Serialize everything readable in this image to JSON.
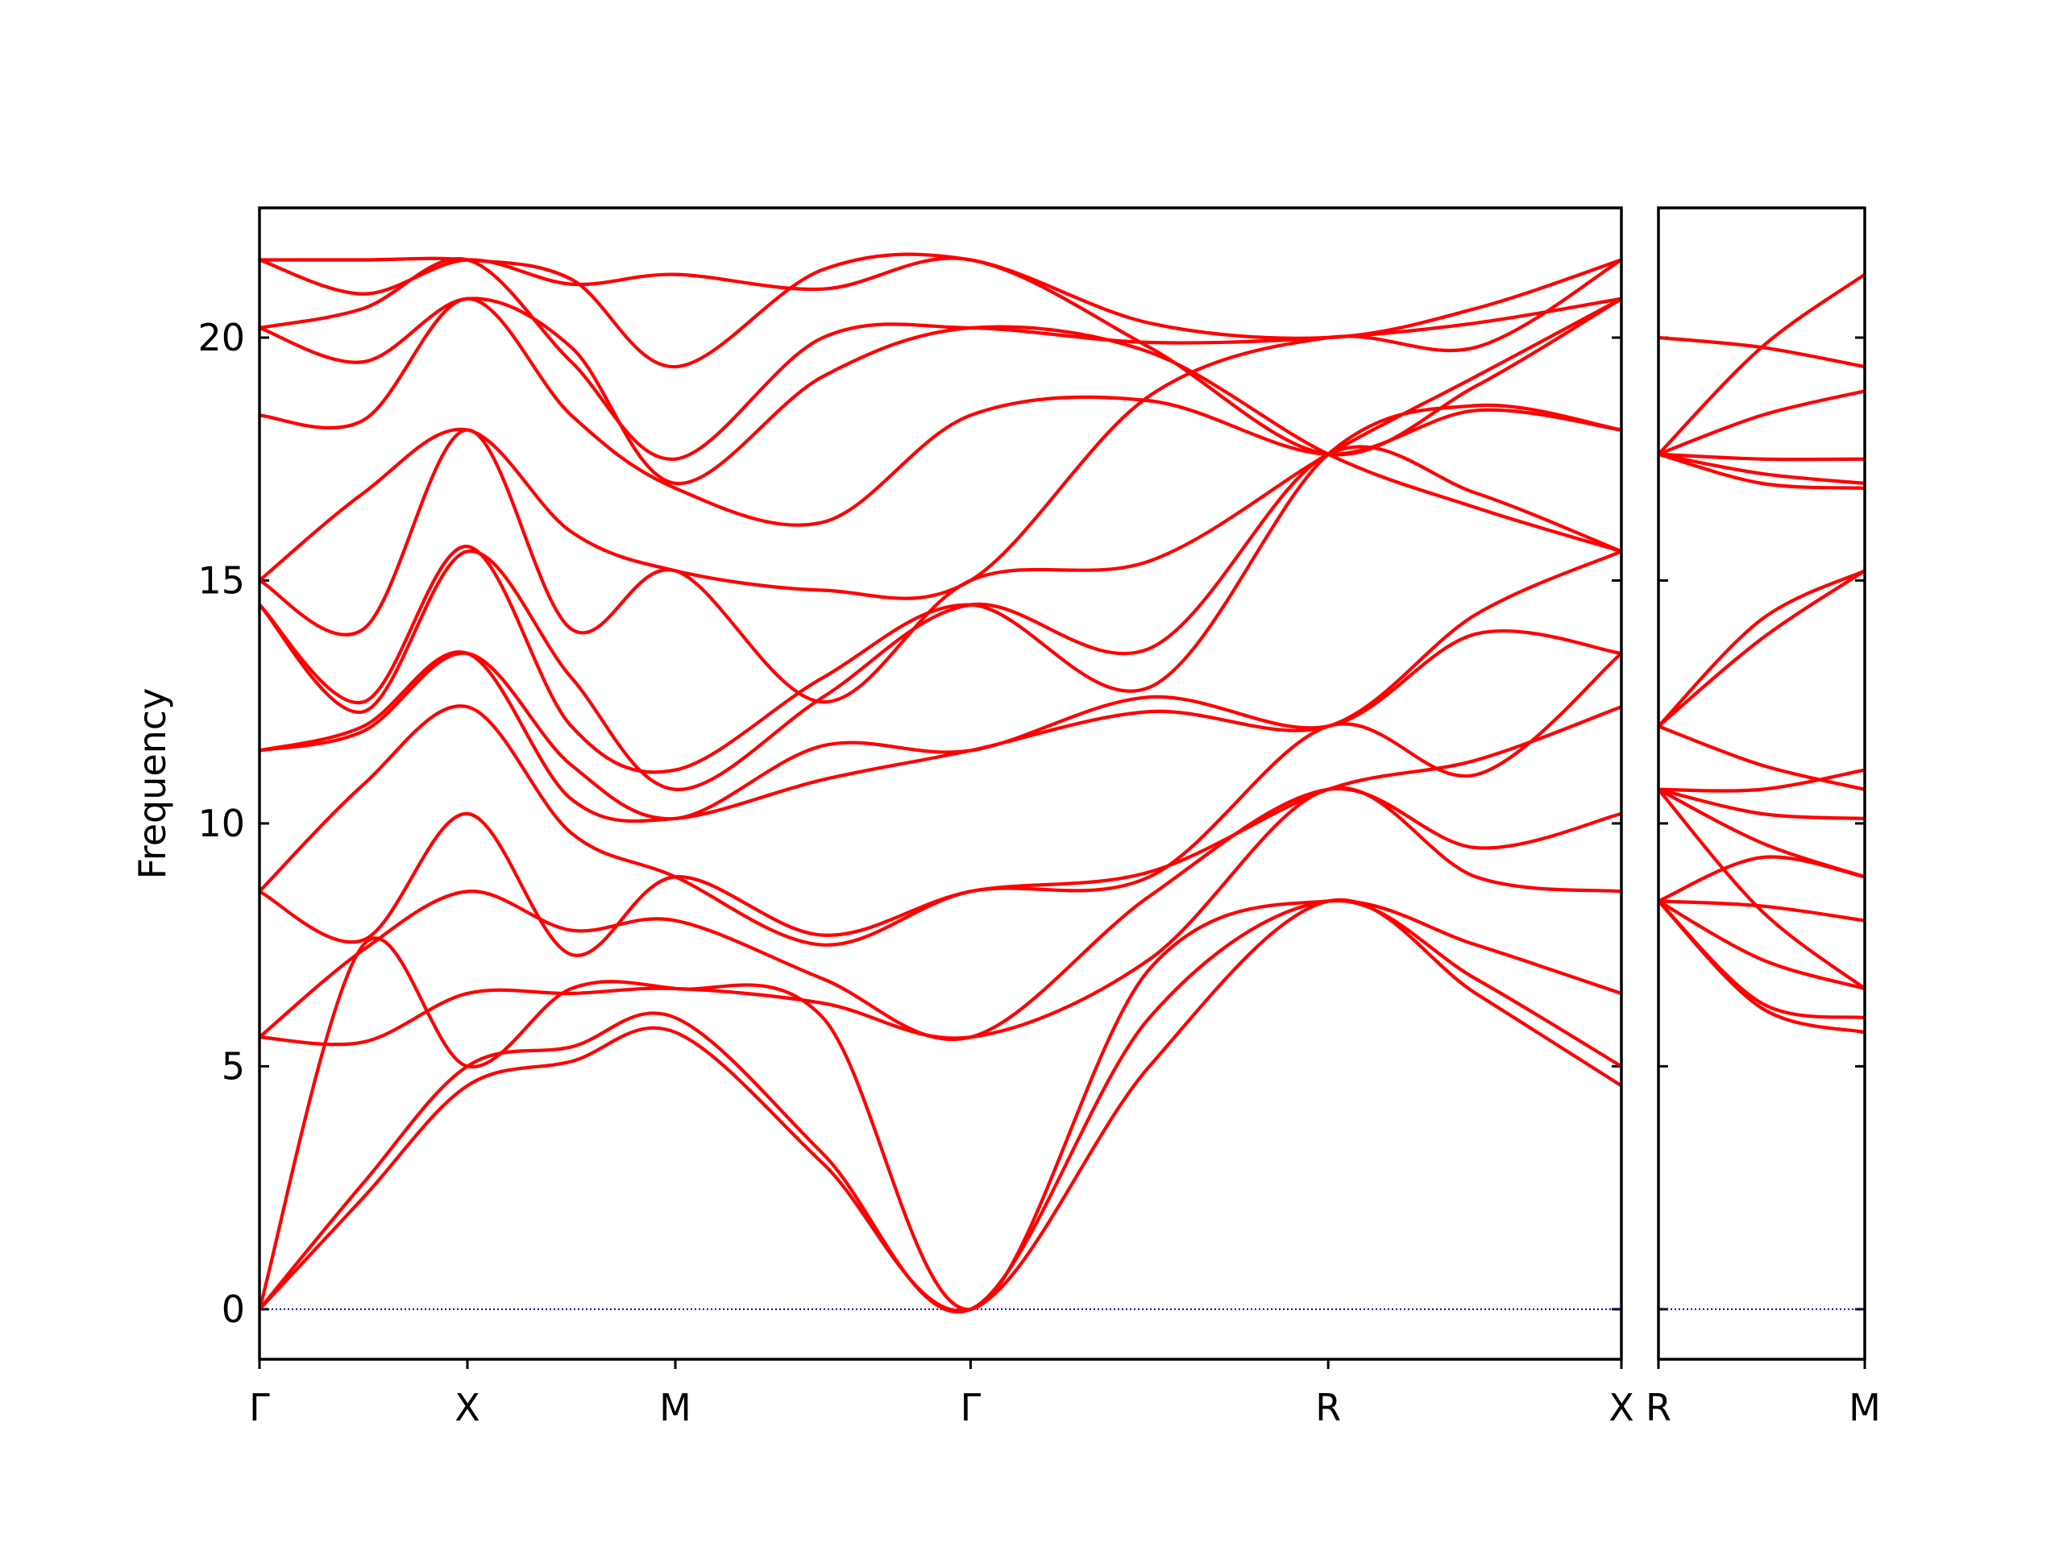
{
  "chart_data": [
    {
      "type": "line",
      "y_label": "Frequency",
      "x": [
        0,
        0.5,
        1,
        1.5,
        2,
        2.71,
        3.42,
        4.28,
        5.14,
        5.85,
        6.55
      ],
      "xlim": [
        0,
        6.55
      ],
      "xticks": [
        {
          "value": 0,
          "label": "Γ"
        },
        {
          "value": 1,
          "label": "X"
        },
        {
          "value": 2,
          "label": "M"
        },
        {
          "value": 3.42,
          "label": "Γ"
        },
        {
          "value": 5.14,
          "label": "R"
        },
        {
          "value": 6.55,
          "label": "X"
        }
      ],
      "ylim": [
        -1.03,
        22.67
      ],
      "yticks": [
        0,
        5,
        10,
        15,
        20
      ],
      "reference_line": {
        "value": 0,
        "color": "#0000cc"
      },
      "series": [
        {
          "color": "#ff0000",
          "values": [
            0,
            2.3,
            4.6,
            5.1,
            5.7,
            3.0,
            0,
            5.0,
            8.4,
            6.5,
            4.6
          ]
        },
        {
          "color": "#ff0000",
          "values": [
            0,
            2.6,
            5.0,
            5.4,
            6.0,
            3.2,
            0,
            6.0,
            8.4,
            6.8,
            5.0
          ]
        },
        {
          "color": "#ff0000",
          "values": [
            0,
            7.5,
            5.0,
            6.6,
            6.6,
            6.0,
            0,
            7.0,
            8.4,
            7.5,
            6.5
          ]
        },
        {
          "color": "#ff0000",
          "values": [
            5.6,
            5.5,
            6.5,
            6.5,
            6.6,
            6.3,
            5.6,
            7.2,
            10.7,
            8.9,
            8.6
          ]
        },
        {
          "color": "#ff0000",
          "values": [
            5.6,
            7.4,
            8.6,
            7.8,
            8.0,
            6.8,
            5.6,
            8.5,
            10.7,
            9.5,
            10.2
          ]
        },
        {
          "color": "#ff0000",
          "values": [
            8.6,
            7.6,
            10.2,
            7.3,
            8.9,
            7.7,
            8.6,
            9.0,
            10.7,
            11.3,
            12.4
          ]
        },
        {
          "color": "#ff0000",
          "values": [
            8.6,
            10.8,
            12.4,
            9.8,
            8.9,
            7.5,
            8.6,
            8.9,
            12.0,
            11.0,
            13.5
          ]
        },
        {
          "color": "#ff0000",
          "values": [
            11.5,
            11.9,
            13.5,
            11.2,
            10.1,
            11.6,
            11.5,
            12.6,
            12.0,
            13.9,
            13.5
          ]
        },
        {
          "color": "#ff0000",
          "values": [
            11.5,
            12.0,
            13.5,
            10.5,
            10.1,
            10.9,
            11.5,
            12.3,
            12.0,
            14.3,
            15.6
          ]
        },
        {
          "color": "#ff0000",
          "values": [
            14.5,
            12.3,
            15.6,
            13.0,
            10.7,
            12.6,
            14.5,
            13.6,
            17.6,
            16.8,
            15.6
          ]
        },
        {
          "color": "#ff0000",
          "values": [
            14.5,
            12.5,
            15.7,
            12.0,
            11.1,
            13.0,
            14.5,
            12.8,
            17.6,
            18.6,
            18.1
          ]
        },
        {
          "color": "#ff0000",
          "values": [
            15.0,
            14.0,
            18.1,
            14.0,
            15.2,
            12.5,
            15.0,
            15.4,
            17.6,
            19.2,
            20.8
          ]
        },
        {
          "color": "#ff0000",
          "values": [
            15.0,
            16.8,
            18.1,
            16.0,
            15.2,
            14.8,
            15.0,
            18.8,
            20.0,
            19.8,
            21.6
          ]
        },
        {
          "color": "#ff0000",
          "values": [
            18.4,
            18.3,
            20.8,
            18.4,
            16.9,
            16.2,
            18.4,
            18.7,
            17.6,
            18.5,
            18.1
          ]
        },
        {
          "color": "#ff0000",
          "values": [
            20.2,
            19.5,
            20.8,
            19.8,
            17.0,
            19.2,
            20.2,
            19.7,
            17.6,
            16.5,
            15.6
          ]
        },
        {
          "color": "#ff0000",
          "values": [
            20.2,
            20.6,
            21.6,
            19.5,
            17.5,
            20.0,
            20.2,
            19.9,
            20.0,
            20.3,
            20.8
          ]
        },
        {
          "color": "#ff0000",
          "values": [
            21.6,
            21.6,
            21.6,
            21.2,
            19.4,
            21.4,
            21.6,
            20.3,
            20.0,
            20.6,
            21.6
          ]
        },
        {
          "color": "#ff0000",
          "values": [
            21.6,
            20.9,
            21.6,
            21.1,
            21.3,
            21.0,
            21.6,
            19.8,
            17.6,
            19.0,
            20.8
          ]
        }
      ]
    },
    {
      "type": "line",
      "x": [
        0,
        0.5,
        1
      ],
      "xlim": [
        0,
        1
      ],
      "xticks": [
        {
          "value": 0,
          "label": "R"
        },
        {
          "value": 1,
          "label": "M"
        }
      ],
      "ylim": [
        -1.03,
        22.67
      ],
      "yticks": [
        0,
        5,
        10,
        15,
        20
      ],
      "reference_line": {
        "value": 0,
        "color": "#0000cc"
      },
      "series": [
        {
          "color": "#ff0000",
          "values": [
            20.0,
            19.8,
            19.4
          ]
        },
        {
          "color": "#ff0000",
          "values": [
            17.6,
            19.8,
            21.3
          ]
        },
        {
          "color": "#ff0000",
          "values": [
            17.6,
            18.4,
            18.9
          ]
        },
        {
          "color": "#ff0000",
          "values": [
            17.6,
            17.5,
            17.5
          ]
        },
        {
          "color": "#ff0000",
          "values": [
            17.6,
            17.0,
            16.9
          ]
        },
        {
          "color": "#ff0000",
          "values": [
            17.6,
            17.2,
            17.0
          ]
        },
        {
          "color": "#ff0000",
          "values": [
            12.0,
            14.2,
            15.2
          ]
        },
        {
          "color": "#ff0000",
          "values": [
            12.0,
            13.8,
            15.2
          ]
        },
        {
          "color": "#ff0000",
          "values": [
            12.0,
            11.2,
            10.7
          ]
        },
        {
          "color": "#ff0000",
          "values": [
            10.7,
            10.7,
            11.1
          ]
        },
        {
          "color": "#ff0000",
          "values": [
            10.7,
            10.2,
            10.1
          ]
        },
        {
          "color": "#ff0000",
          "values": [
            10.7,
            9.6,
            8.9
          ]
        },
        {
          "color": "#ff0000",
          "values": [
            10.7,
            8.2,
            6.6
          ]
        },
        {
          "color": "#ff0000",
          "values": [
            8.4,
            9.3,
            8.9
          ]
        },
        {
          "color": "#ff0000",
          "values": [
            8.4,
            8.3,
            8.0
          ]
        },
        {
          "color": "#ff0000",
          "values": [
            8.4,
            7.2,
            6.6
          ]
        },
        {
          "color": "#ff0000",
          "values": [
            8.4,
            6.3,
            6.0
          ]
        },
        {
          "color": "#ff0000",
          "values": [
            8.4,
            6.2,
            5.7
          ]
        }
      ]
    }
  ]
}
